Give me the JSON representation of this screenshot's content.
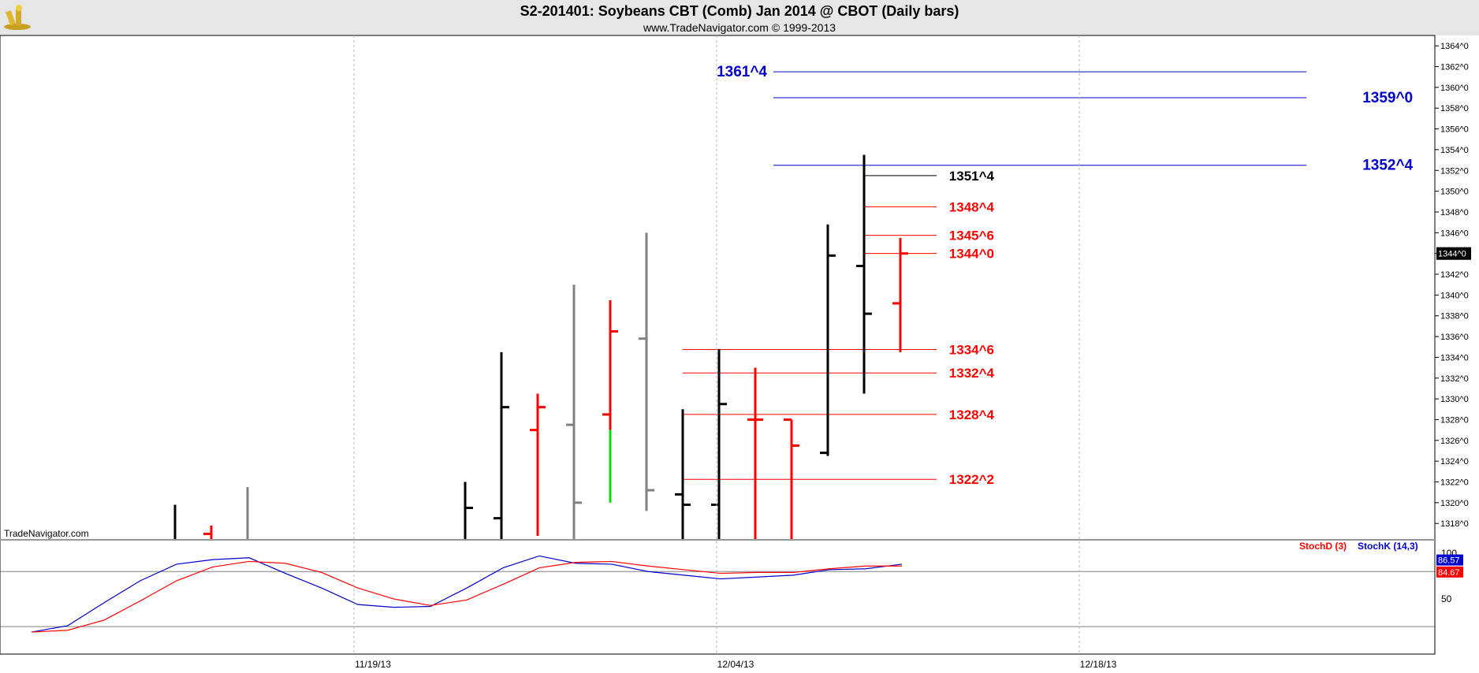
{
  "header": {
    "title": "S2-201401:  Soybeans CBT (Comb) Jan 2014 @ CBOT  (Daily bars)",
    "subtitle": "www.TradeNavigator.com © 1999-2013"
  },
  "watermark": "TradeNavigator.com",
  "logo_icon": "trade-navigator-logo-icon",
  "colors": {
    "background": "#ffffff",
    "header_bg": "#e6e6e6",
    "grid": "#b4b4b4",
    "bar_black": "#000000",
    "bar_red": "#ff0000",
    "bar_gray": "#808080",
    "bar_green": "#00e000",
    "level_blue": "#0000cc",
    "level_red": "#ff0000",
    "stoch_d": "#ff0000",
    "stoch_k": "#0000ff"
  },
  "chart_data": [
    {
      "type": "bar",
      "style": "ohlc",
      "ylim": [
        1316.5,
        1365
      ],
      "y_ticks": [
        "1318^0",
        "1320^0",
        "1322^0",
        "1324^0",
        "1326^0",
        "1328^0",
        "1330^0",
        "1332^0",
        "1334^0",
        "1336^0",
        "1338^0",
        "1340^0",
        "1342^0",
        "1344^0",
        "1346^0",
        "1348^0",
        "1350^0",
        "1352^0",
        "1354^0",
        "1356^0",
        "1358^0",
        "1360^0",
        "1362^0",
        "1364^0"
      ],
      "y_tick_values": [
        1318,
        1320,
        1322,
        1324,
        1326,
        1328,
        1330,
        1332,
        1334,
        1336,
        1338,
        1340,
        1342,
        1344,
        1346,
        1348,
        1350,
        1352,
        1354,
        1356,
        1358,
        1360,
        1362,
        1364
      ],
      "x_labels": [
        {
          "label": "11/19/13",
          "index": 9
        },
        {
          "label": "12/04/13",
          "index": 19
        },
        {
          "label": "12/18/13",
          "index": 29
        }
      ],
      "current_price": "1344^0",
      "bars": [
        {
          "i": 4,
          "high": 1319.8,
          "low": 1316.5,
          "open": null,
          "close": null,
          "color": "black"
        },
        {
          "i": 5,
          "high": 1317.8,
          "low": 1316.5,
          "open": 1317.0,
          "close": null,
          "color": "red"
        },
        {
          "i": 6,
          "high": 1321.5,
          "low": 1316.5,
          "open": null,
          "close": null,
          "color": "gray"
        },
        {
          "i": 12,
          "high": 1322.0,
          "low": 1316.5,
          "open": null,
          "close": 1319.5,
          "color": "black"
        },
        {
          "i": 13,
          "high": 1334.5,
          "low": 1316.5,
          "open": 1318.5,
          "close": 1329.2,
          "color": "black"
        },
        {
          "i": 14,
          "high": 1330.5,
          "low": 1316.8,
          "open": 1327.0,
          "close": 1329.2,
          "color": "red"
        },
        {
          "i": 15,
          "high": 1341.0,
          "low": 1316.5,
          "open": 1327.5,
          "close": 1320.0,
          "color": "gray"
        },
        {
          "i": 16,
          "high": 1339.5,
          "low": 1320.0,
          "open": 1328.5,
          "close": 1336.5,
          "color": "red",
          "low_segment_color": "green",
          "low_segment_top": 1327.0
        },
        {
          "i": 17,
          "high": 1346.0,
          "low": 1319.2,
          "open": 1335.8,
          "close": 1321.2,
          "color": "gray"
        },
        {
          "i": 18,
          "high": 1329.0,
          "low": 1316.5,
          "open": 1320.8,
          "close": 1319.8,
          "color": "black"
        },
        {
          "i": 19,
          "high": 1334.8,
          "low": 1316.5,
          "open": 1319.8,
          "close": 1329.5,
          "color": "black"
        },
        {
          "i": 20,
          "high": 1333.0,
          "low": 1316.5,
          "open": 1328.0,
          "close": 1328.0,
          "color": "red"
        },
        {
          "i": 21,
          "high": 1328.0,
          "low": 1316.5,
          "open": 1328.0,
          "close": 1325.5,
          "color": "red"
        },
        {
          "i": 22,
          "high": 1346.8,
          "low": 1324.5,
          "open": 1324.8,
          "close": 1343.8,
          "color": "black"
        },
        {
          "i": 23,
          "high": 1353.5,
          "low": 1330.5,
          "open": 1342.8,
          "close": 1338.2,
          "color": "black"
        },
        {
          "i": 24,
          "high": 1345.5,
          "low": 1334.5,
          "open": 1339.2,
          "close": 1344.0,
          "color": "red"
        }
      ],
      "levels": [
        {
          "label": "1361^4",
          "value": 1361.5,
          "color": "blue",
          "from": 20.5,
          "to": 35.2,
          "label_side": "left"
        },
        {
          "label": "1359^0",
          "value": 1359.0,
          "color": "blue",
          "from": 20.5,
          "to": 35.2,
          "label_side": "right"
        },
        {
          "label": "1352^4",
          "value": 1352.5,
          "color": "blue",
          "from": 20.5,
          "to": 35.2,
          "label_side": "right"
        },
        {
          "label": "1351^4",
          "value": 1351.5,
          "color": "black",
          "from": 23.0,
          "to": 25.0,
          "label_side": "right"
        },
        {
          "label": "1348^4",
          "value": 1348.5,
          "color": "red",
          "from": 23.0,
          "to": 25.0,
          "label_side": "right"
        },
        {
          "label": "1345^6",
          "value": 1345.75,
          "color": "red",
          "from": 23.0,
          "to": 25.0,
          "label_side": "right"
        },
        {
          "label": "1344^0",
          "value": 1344.0,
          "color": "red",
          "from": 23.0,
          "to": 25.0,
          "label_side": "right"
        },
        {
          "label": "1334^6",
          "value": 1334.75,
          "color": "red",
          "from": 18.0,
          "to": 25.0,
          "label_side": "right"
        },
        {
          "label": "1332^4",
          "value": 1332.5,
          "color": "red",
          "from": 18.0,
          "to": 25.0,
          "label_side": "right"
        },
        {
          "label": "1328^4",
          "value": 1328.5,
          "color": "red",
          "from": 18.0,
          "to": 25.0,
          "label_side": "right"
        },
        {
          "label": "1322^2",
          "value": 1322.25,
          "color": "red",
          "from": 18.0,
          "to": 25.0,
          "label_side": "right"
        }
      ]
    },
    {
      "type": "line",
      "ylim": [
        -10,
        112
      ],
      "y_ticks": [
        "100",
        "50"
      ],
      "y_tick_values": [
        100,
        50
      ],
      "reference_lines": [
        80,
        20
      ],
      "legend": [
        {
          "label": "StochD",
          "param": "(3)",
          "color": "red"
        },
        {
          "label": "StochK",
          "param": "(14,3)",
          "color": "blue"
        }
      ],
      "badges": [
        {
          "label": "86.57",
          "color": "blue",
          "value": 86.57
        },
        {
          "label": "84.67",
          "color": "red",
          "value": 84.67
        }
      ],
      "x": [
        0,
        1,
        2,
        3,
        4,
        5,
        6,
        7,
        8,
        9,
        10,
        11,
        12,
        13,
        14,
        15,
        16,
        17,
        18,
        19,
        20,
        21,
        22,
        23,
        24
      ],
      "series": [
        {
          "name": "StochK",
          "color": "blue",
          "values": [
            14,
            21,
            46,
            70,
            88,
            93,
            95,
            78,
            62,
            44,
            41,
            42,
            62,
            84,
            97,
            89,
            88,
            80,
            76,
            72,
            74,
            76,
            82,
            83,
            88
          ]
        },
        {
          "name": "StochD",
          "color": "red",
          "values": [
            14,
            16,
            27,
            48,
            70,
            85,
            91,
            89,
            79,
            62,
            50,
            43,
            49,
            66,
            84,
            90,
            91,
            86,
            82,
            78,
            79,
            79,
            83,
            86,
            86
          ]
        }
      ]
    }
  ]
}
